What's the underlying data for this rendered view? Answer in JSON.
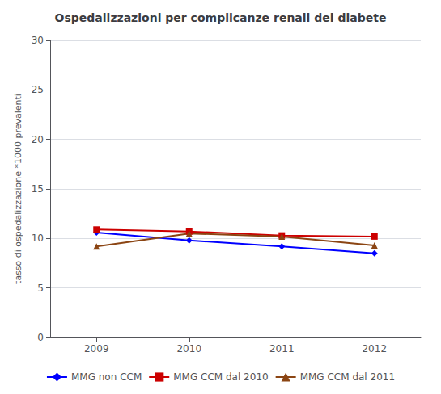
{
  "chart_data": {
    "type": "line",
    "title": "Ospedalizzazioni per complicanze renali del diabete",
    "ylabel": "tasso di ospedalizzazione *1000 prevalenti",
    "x": [
      2009,
      2010,
      2011,
      2012
    ],
    "series": [
      {
        "name": "MMG non CCM",
        "color": "#0000FF",
        "marker": "diamond",
        "values": [
          10.6,
          9.8,
          9.2,
          8.5
        ]
      },
      {
        "name": "MMG CCM dal 2010",
        "color": "#CC0000",
        "marker": "square",
        "values": [
          10.9,
          10.7,
          10.3,
          10.2
        ]
      },
      {
        "name": "MMG CCM dal 2011",
        "color": "#8B4513",
        "marker": "triangle",
        "values": [
          9.2,
          10.5,
          10.2,
          9.3
        ]
      }
    ],
    "xlim": [
      2008.5,
      2012.5
    ],
    "xticks": [
      2009,
      2010,
      2011,
      2012
    ],
    "ylim": [
      0,
      30
    ],
    "yticks": [
      0,
      5,
      10,
      15,
      20,
      25,
      30
    ],
    "grid": true,
    "legend": "bottom"
  }
}
